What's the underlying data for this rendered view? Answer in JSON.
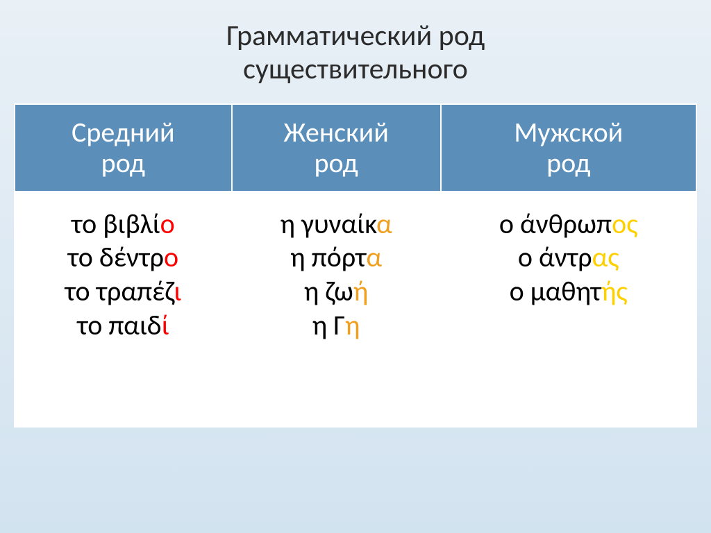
{
  "title_line1": "Грамматический род",
  "title_line2": "существительного",
  "layout": {
    "slide_width": 1024,
    "slide_height": 768,
    "background_gradient_top": "#e9f0f6",
    "background_gradient_bottom": "#d2e3f0"
  },
  "table": {
    "header_bg": "#5b8fba",
    "header_text_color": "#ffffff",
    "cell_bg": "#ffffff",
    "cell_text_color": "#000000",
    "border_color": "#ffffff",
    "font_size_header": 40,
    "font_size_cell": 40,
    "columns": [
      {
        "line1": "Средний",
        "line2": "род"
      },
      {
        "line1": "Женский",
        "line2": "род"
      },
      {
        "line1": "Мужской",
        "line2": "род"
      }
    ],
    "highlight_colors": {
      "red": "#ff0000",
      "orange": "#f0a020",
      "yellow": "#ffd000"
    },
    "cells": [
      [
        {
          "base": "το βιβλί",
          "suffix": "ο",
          "color": "red"
        },
        {
          "base": "το δέντρ",
          "suffix": "ο",
          "color": "red"
        },
        {
          "base": "το τραπέζ",
          "suffix": "ι",
          "color": "red"
        },
        {
          "base": "το παιδ",
          "suffix": "ί",
          "color": "red"
        }
      ],
      [
        {
          "base": "η γυναίκ",
          "suffix": "α",
          "color": "orange"
        },
        {
          "base": "η πόρτ",
          "suffix": "α",
          "color": "orange"
        },
        {
          "base": "η ζω",
          "suffix": "ή",
          "color": "orange"
        },
        {
          "base": "η Γ",
          "suffix": "η",
          "color": "orange"
        }
      ],
      [
        {
          "base": "ο άνθρωπ",
          "suffix": "ος",
          "color": "yellow"
        },
        {
          "base": "ο άντρ",
          "suffix": "ας",
          "color": "yellow"
        },
        {
          "base": "ο μαθητ",
          "suffix": "ής",
          "color": "yellow"
        }
      ]
    ]
  }
}
